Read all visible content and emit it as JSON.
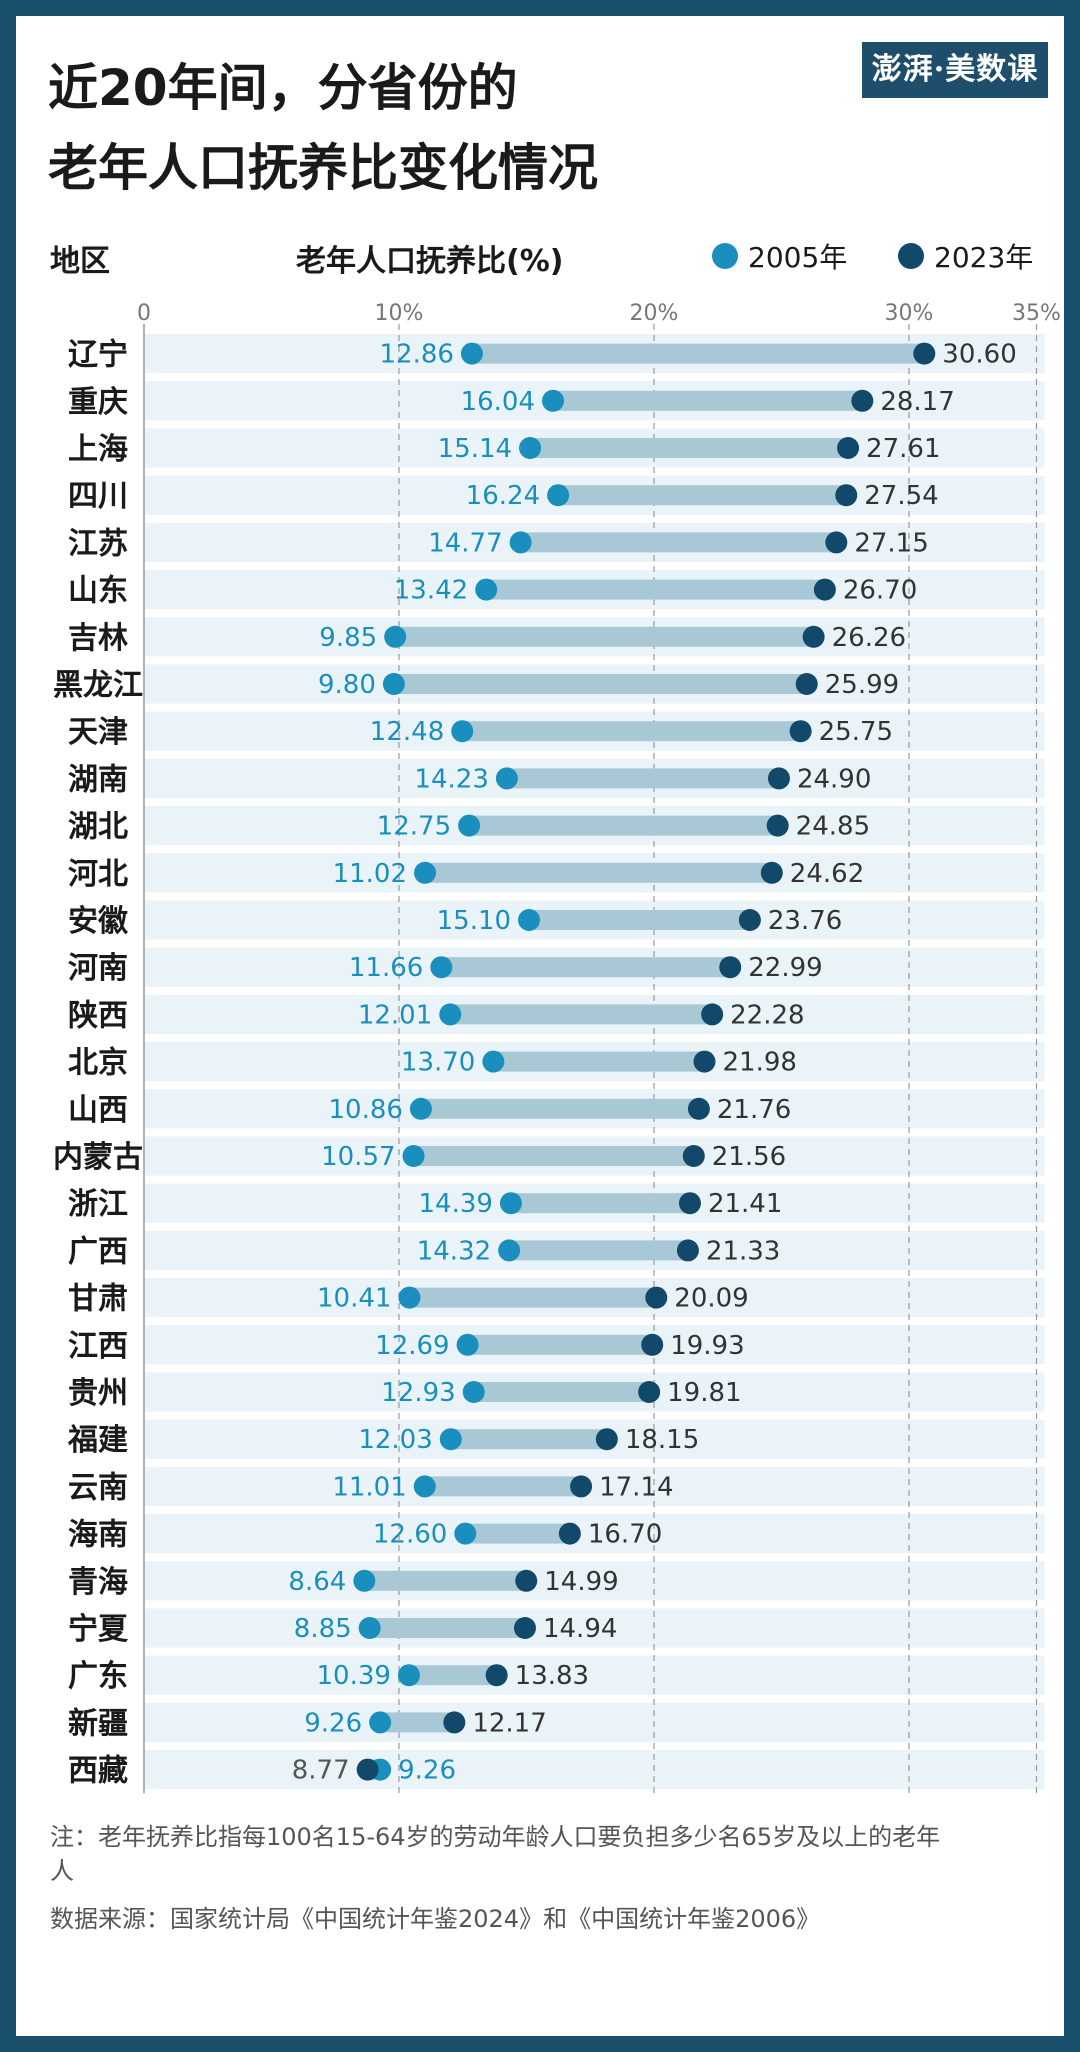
{
  "title_line1": "近20年间，分省份的",
  "title_line2": "老年人口抚养比变化情况",
  "logo": "澎湃·美数课",
  "header": {
    "region": "地区",
    "metric": "老年人口抚养比(%)"
  },
  "colors": {
    "y2005": "#1a8fbd",
    "y2023": "#12496a",
    "band": "#eaf4f8",
    "bar": "#a9c8d5",
    "grid": "#999999"
  },
  "note": "注：老年抚养比指每100名15-64岁的劳动年龄人口要负担多少名65岁及以上的老年人",
  "source": "数据来源：国家统计局《中国统计年鉴2024》和《中国统计年鉴2006》",
  "chart_data": {
    "type": "dumbbell",
    "xlim": [
      0,
      35
    ],
    "ticks": [
      0,
      10,
      20,
      30,
      35
    ],
    "tick_labels": [
      "0",
      "10%",
      "20%",
      "30%",
      "35%"
    ],
    "series": [
      {
        "name": "2005年",
        "key": "v2005"
      },
      {
        "name": "2023年",
        "key": "v2023"
      }
    ],
    "rows": [
      {
        "region": "辽宁",
        "v2005": 12.86,
        "v2023": 30.6,
        "l2005": "12.86",
        "l2023": "30.60"
      },
      {
        "region": "重庆",
        "v2005": 16.04,
        "v2023": 28.17,
        "l2005": "16.04",
        "l2023": "28.17"
      },
      {
        "region": "上海",
        "v2005": 15.14,
        "v2023": 27.61,
        "l2005": "15.14",
        "l2023": "27.61"
      },
      {
        "region": "四川",
        "v2005": 16.24,
        "v2023": 27.54,
        "l2005": "16.24",
        "l2023": "27.54"
      },
      {
        "region": "江苏",
        "v2005": 14.77,
        "v2023": 27.15,
        "l2005": "14.77",
        "l2023": "27.15"
      },
      {
        "region": "山东",
        "v2005": 13.42,
        "v2023": 26.7,
        "l2005": "13.42",
        "l2023": "26.70"
      },
      {
        "region": "吉林",
        "v2005": 9.85,
        "v2023": 26.26,
        "l2005": "9.85",
        "l2023": "26.26"
      },
      {
        "region": "黑龙江",
        "v2005": 9.8,
        "v2023": 25.99,
        "l2005": "9.80",
        "l2023": "25.99"
      },
      {
        "region": "天津",
        "v2005": 12.48,
        "v2023": 25.75,
        "l2005": "12.48",
        "l2023": "25.75"
      },
      {
        "region": "湖南",
        "v2005": 14.23,
        "v2023": 24.9,
        "l2005": "14.23",
        "l2023": "24.90"
      },
      {
        "region": "湖北",
        "v2005": 12.75,
        "v2023": 24.85,
        "l2005": "12.75",
        "l2023": "24.85"
      },
      {
        "region": "河北",
        "v2005": 11.02,
        "v2023": 24.62,
        "l2005": "11.02",
        "l2023": "24.62"
      },
      {
        "region": "安徽",
        "v2005": 15.1,
        "v2023": 23.76,
        "l2005": "15.10",
        "l2023": "23.76"
      },
      {
        "region": "河南",
        "v2005": 11.66,
        "v2023": 22.99,
        "l2005": "11.66",
        "l2023": "22.99"
      },
      {
        "region": "陕西",
        "v2005": 12.01,
        "v2023": 22.28,
        "l2005": "12.01",
        "l2023": "22.28"
      },
      {
        "region": "北京",
        "v2005": 13.7,
        "v2023": 21.98,
        "l2005": "13.70",
        "l2023": "21.98"
      },
      {
        "region": "山西",
        "v2005": 10.86,
        "v2023": 21.76,
        "l2005": "10.86",
        "l2023": "21.76"
      },
      {
        "region": "内蒙古",
        "v2005": 10.57,
        "v2023": 21.56,
        "l2005": "10.57",
        "l2023": "21.56"
      },
      {
        "region": "浙江",
        "v2005": 14.39,
        "v2023": 21.41,
        "l2005": "14.39",
        "l2023": "21.41"
      },
      {
        "region": "广西",
        "v2005": 14.32,
        "v2023": 21.33,
        "l2005": "14.32",
        "l2023": "21.33"
      },
      {
        "region": "甘肃",
        "v2005": 10.41,
        "v2023": 20.09,
        "l2005": "10.41",
        "l2023": "20.09"
      },
      {
        "region": "江西",
        "v2005": 12.69,
        "v2023": 19.93,
        "l2005": "12.69",
        "l2023": "19.93"
      },
      {
        "region": "贵州",
        "v2005": 12.93,
        "v2023": 19.81,
        "l2005": "12.93",
        "l2023": "19.81"
      },
      {
        "region": "福建",
        "v2005": 12.03,
        "v2023": 18.15,
        "l2005": "12.03",
        "l2023": "18.15"
      },
      {
        "region": "云南",
        "v2005": 11.01,
        "v2023": 17.14,
        "l2005": "11.01",
        "l2023": "17.14"
      },
      {
        "region": "海南",
        "v2005": 12.6,
        "v2023": 16.7,
        "l2005": "12.60",
        "l2023": "16.70"
      },
      {
        "region": "青海",
        "v2005": 8.64,
        "v2023": 14.99,
        "l2005": "8.64",
        "l2023": "14.99"
      },
      {
        "region": "宁夏",
        "v2005": 8.85,
        "v2023": 14.94,
        "l2005": "8.85",
        "l2023": "14.94"
      },
      {
        "region": "广东",
        "v2005": 10.39,
        "v2023": 13.83,
        "l2005": "10.39",
        "l2023": "13.83"
      },
      {
        "region": "新疆",
        "v2005": 9.26,
        "v2023": 12.17,
        "l2005": "9.26",
        "l2023": "12.17"
      },
      {
        "region": "西藏",
        "v2005": 9.26,
        "v2023": 8.77,
        "l2005": "9.26",
        "l2023": "8.77"
      }
    ]
  }
}
